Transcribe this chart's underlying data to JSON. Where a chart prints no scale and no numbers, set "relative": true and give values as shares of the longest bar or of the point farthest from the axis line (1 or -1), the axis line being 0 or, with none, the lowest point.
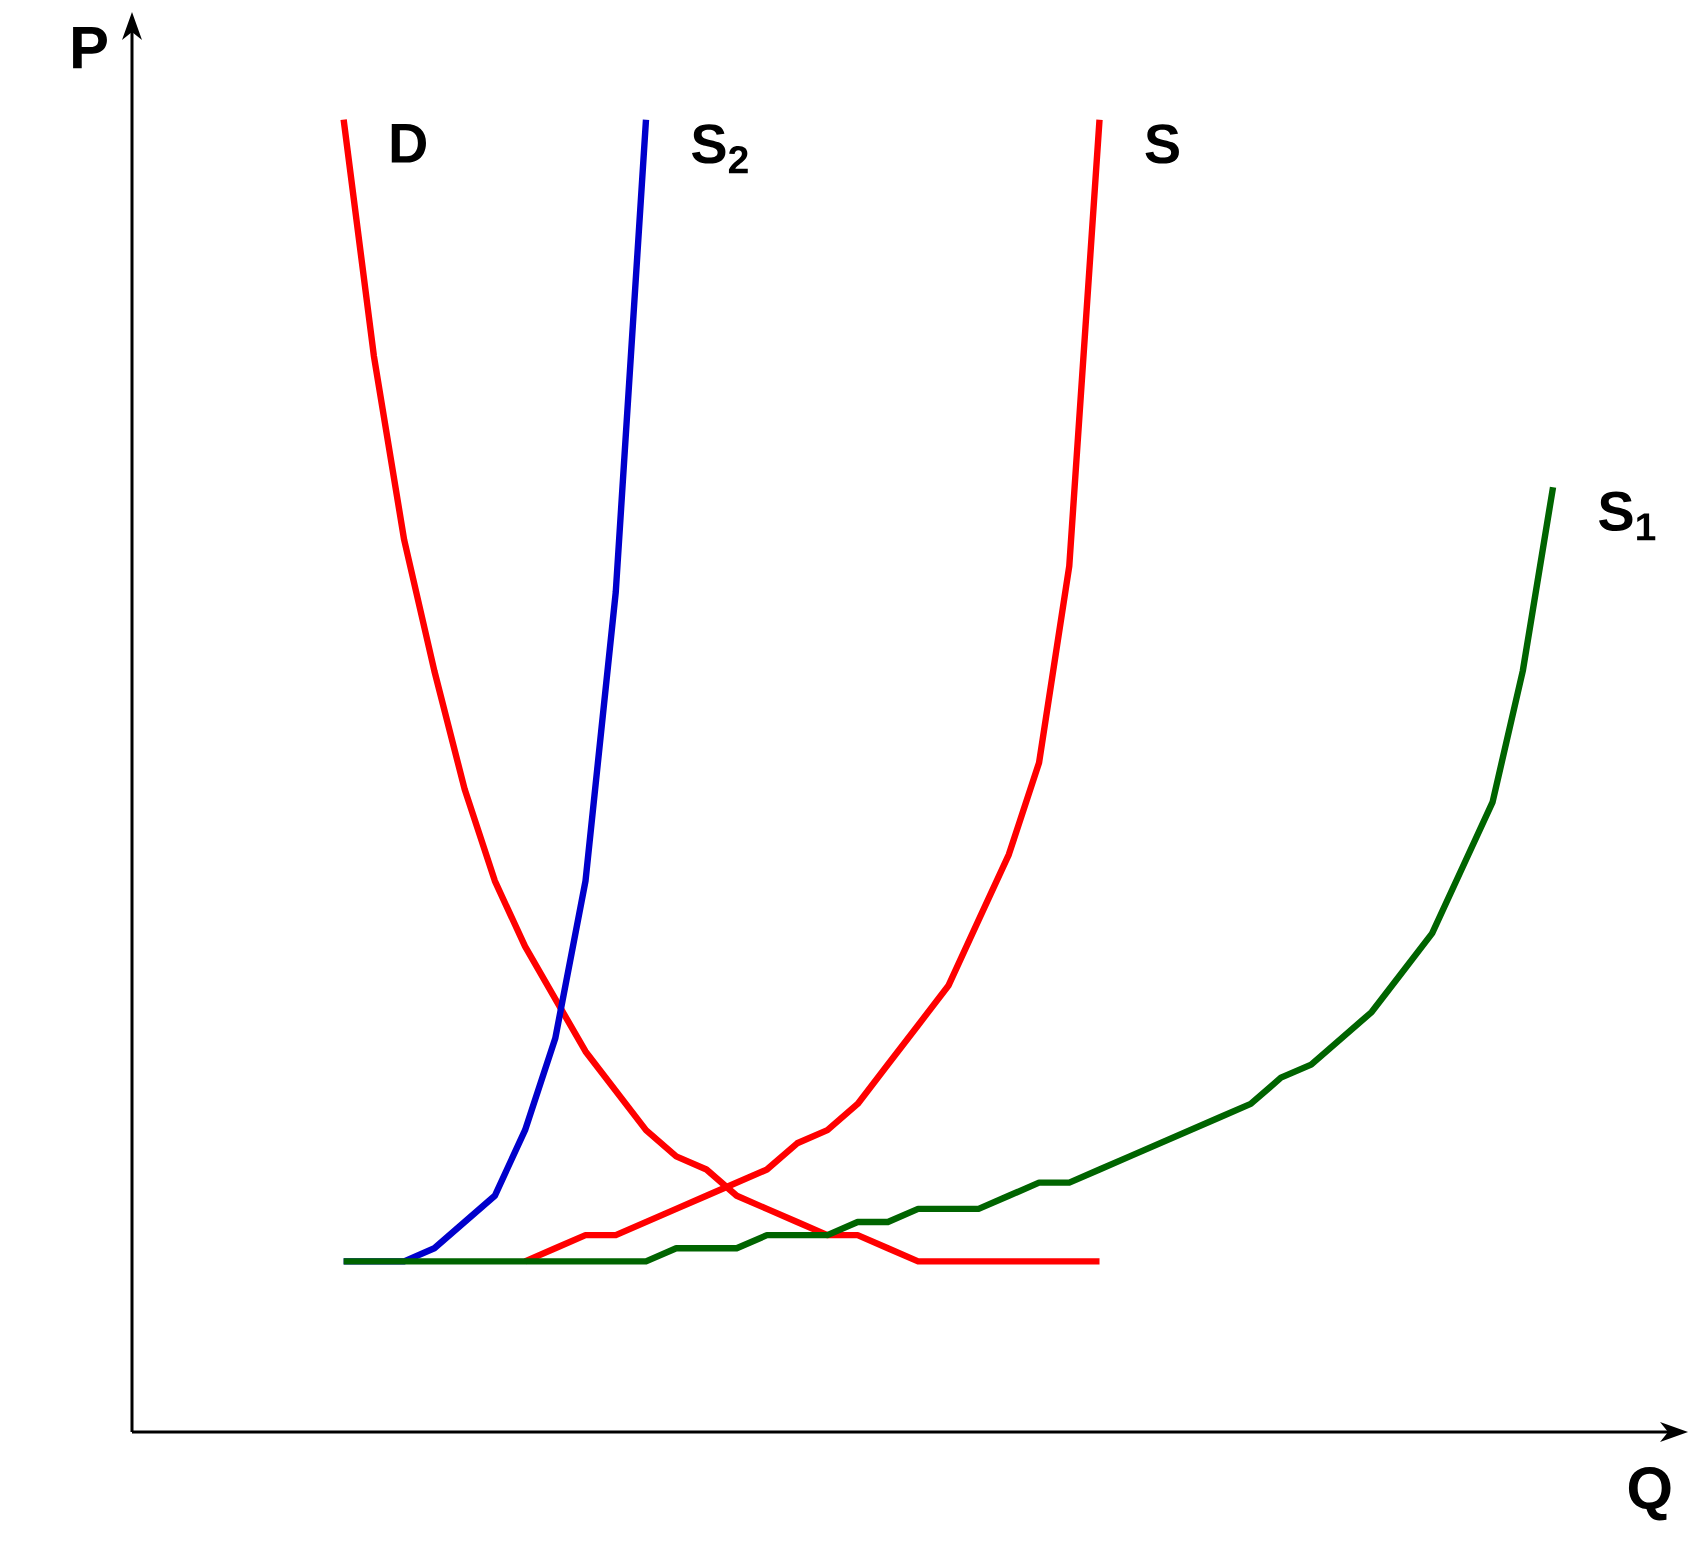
{
  "chart_data": {
    "type": "line",
    "relative": true,
    "xlabel": "Q",
    "ylabel": "P",
    "categories": [
      null,
      null,
      null,
      null,
      null,
      null,
      null,
      null,
      null,
      null,
      null,
      null,
      null,
      null,
      null,
      null,
      null,
      null,
      null,
      null,
      null,
      null,
      null,
      null,
      null,
      null,
      null,
      null,
      null,
      null,
      null,
      null,
      null,
      null,
      null,
      null,
      null,
      null,
      null,
      null,
      null
    ],
    "series": [
      {
        "name": "D",
        "color": "#ff0000",
        "values": [
          1.0,
          0.82,
          0.68,
          0.58,
          0.49,
          0.42,
          0.37,
          0.33,
          0.29,
          0.26,
          0.23,
          0.21,
          0.2,
          0.18,
          0.17,
          0.16,
          0.15,
          0.15,
          0.14,
          0.13,
          0.13,
          0.13,
          0.13,
          0.13,
          0.13,
          0.13,
          null,
          null,
          null,
          null,
          null,
          null,
          null,
          null,
          null,
          null,
          null,
          null,
          null,
          null,
          null
        ]
      },
      {
        "name": "S$_{2}$",
        "color": "#0000cc",
        "values": [
          0.13,
          0.13,
          0.13,
          0.14,
          0.16,
          0.18,
          0.23,
          0.3,
          0.42,
          0.64,
          1.0,
          null,
          null,
          null,
          null,
          null,
          null,
          null,
          null,
          null,
          null,
          null,
          null,
          null,
          null,
          null,
          null,
          null,
          null,
          null,
          null,
          null,
          null,
          null,
          null,
          null,
          null,
          null,
          null,
          null,
          null
        ]
      },
      {
        "name": "S",
        "color": "#ff0000",
        "values": [
          null,
          null,
          null,
          null,
          null,
          null,
          0.13,
          0.14,
          0.15,
          0.15,
          0.16,
          0.17,
          0.18,
          0.19,
          0.2,
          0.22,
          0.23,
          0.25,
          0.28,
          0.31,
          0.34,
          0.39,
          0.44,
          0.51,
          0.66,
          1.0,
          null,
          null,
          null,
          null,
          null,
          null,
          null,
          null,
          null,
          null,
          null,
          null,
          null,
          null,
          null
        ]
      },
      {
        "name": "S$_{1}$",
        "color": "#006400",
        "values": [
          0.13,
          0.13,
          0.13,
          0.13,
          0.13,
          0.13,
          0.13,
          0.13,
          0.13,
          0.13,
          0.13,
          0.14,
          0.14,
          0.14,
          0.15,
          0.15,
          0.15,
          0.16,
          0.16,
          0.17,
          0.17,
          0.17,
          0.18,
          0.19,
          0.19,
          0.2,
          0.21,
          0.22,
          0.23,
          0.24,
          0.25,
          0.27,
          0.28,
          0.3,
          0.32,
          0.35,
          0.38,
          0.43,
          0.48,
          0.58,
          0.72
        ]
      }
    ]
  }
}
